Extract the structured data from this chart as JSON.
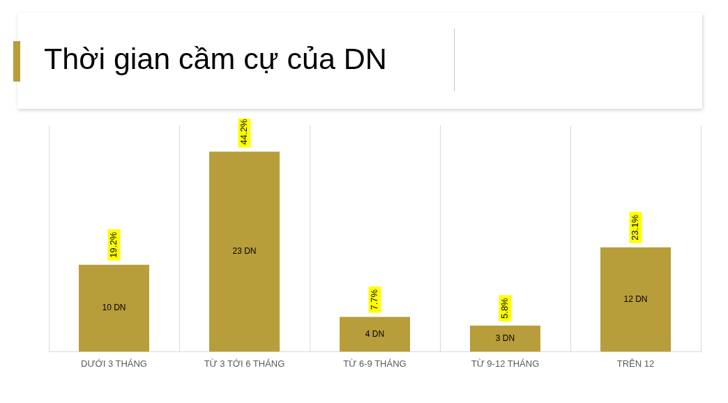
{
  "chart_data": {
    "type": "bar",
    "title": "Thời gian cầm cự của DN",
    "categories": [
      "DƯỚI 3 THÁNG",
      "TỪ 3 TỚI 6 THÁNG",
      "TỪ 6-9 THÁNG",
      "TỪ 9-12 THÁNG",
      "TRÊN 12"
    ],
    "values": [
      10,
      23,
      4,
      3,
      12
    ],
    "color": "#b89d3b",
    "value_labels": [
      "10 DN",
      "23 DN",
      "4 DN",
      "3 DN",
      "12 DN"
    ],
    "ylim": [
      0,
      26
    ],
    "tick_labels": "x",
    "grid": "x",
    "legend": false,
    "annotations": [
      {
        "text": "19.2%",
        "x": "DƯỚI 3 THÁNG",
        "y": 10
      },
      {
        "text": "44.2%",
        "x": "TỪ 3 TỚI 6 THÁNG",
        "y": 23
      },
      {
        "text": "7.7%",
        "x": "TỪ 6-9 THÁNG",
        "y": 4
      },
      {
        "text": "5.8%",
        "x": "TỪ 9-12 THÁNG",
        "y": 3
      },
      {
        "text": "23.1%",
        "x": "TRÊN 12",
        "y": 12
      }
    ]
  }
}
